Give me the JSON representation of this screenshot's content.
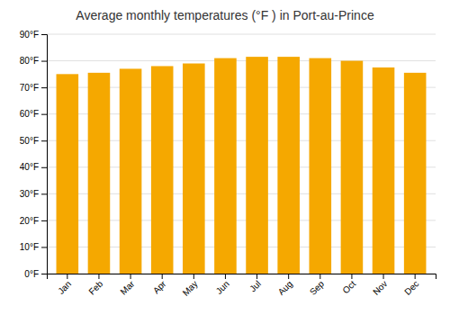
{
  "chart_data": {
    "type": "bar",
    "title": "Average monthly temperatures (°F ) in Port-au-Prince",
    "categories": [
      "Jan",
      "Feb",
      "Mar",
      "Apr",
      "May",
      "Jun",
      "Jul",
      "Aug",
      "Sep",
      "Oct",
      "Nov",
      "Dec"
    ],
    "values": [
      75,
      75.5,
      77,
      78,
      79,
      81,
      81.5,
      81.5,
      81,
      80,
      77.5,
      75.5
    ],
    "color": "#F5A800",
    "ylim": [
      0,
      90
    ],
    "yticks": [
      {
        "value": 0,
        "label": "0°F"
      },
      {
        "value": 10,
        "label": "10°F"
      },
      {
        "value": 20,
        "label": "20°F"
      },
      {
        "value": 30,
        "label": "30°F"
      },
      {
        "value": 40,
        "label": "40°F"
      },
      {
        "value": 50,
        "label": "50°F"
      },
      {
        "value": 60,
        "label": "60°F"
      },
      {
        "value": 70,
        "label": "70°F"
      },
      {
        "value": 80,
        "label": "80°F"
      },
      {
        "value": 90,
        "label": "90°F"
      }
    ],
    "grid": true
  }
}
